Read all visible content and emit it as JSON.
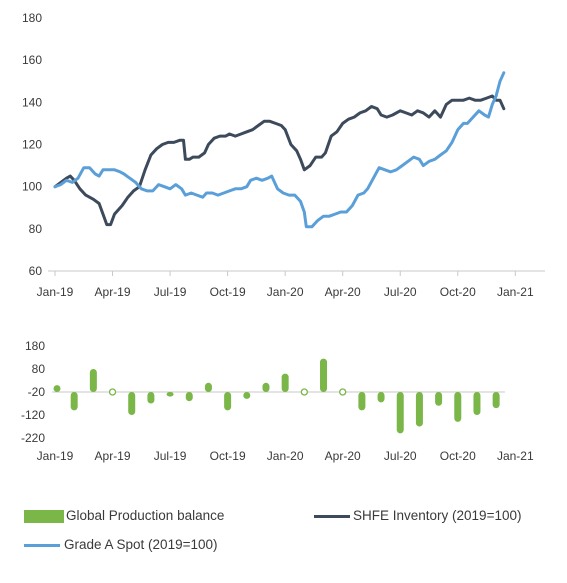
{
  "colors": {
    "production_balance": "#7ab648",
    "shfe_inventory": "#3d4a5c",
    "grade_a_spot": "#5b9fd9",
    "axis": "#c8c8c8",
    "text": "#3a3a3a"
  },
  "legend": {
    "production_balance": "Global Production balance",
    "shfe_inventory": "SHFE Inventory (2019=100)",
    "grade_a_spot": "Grade A Spot (2019=100)"
  },
  "chart_data": [
    {
      "type": "line",
      "title": "",
      "xlabel": "",
      "ylabel": "",
      "x_tick_labels": [
        "Jan-19",
        "Apr-19",
        "Jul-19",
        "Oct-19",
        "Jan-20",
        "Apr-20",
        "Jul-20",
        "Oct-20",
        "Jan-21"
      ],
      "y_tick_labels": [
        "60",
        "80",
        "100",
        "120",
        "140",
        "160",
        "180"
      ],
      "ylim": [
        60,
        180
      ],
      "xlim_months": [
        0,
        26.5
      ],
      "series": [
        {
          "key": "shfe_inventory",
          "name": "SHFE Inventory (2019=100)",
          "points": [
            [
              0,
              100
            ],
            [
              0.3,
              102
            ],
            [
              0.6,
              104
            ],
            [
              0.8,
              105
            ],
            [
              1.0,
              103
            ],
            [
              1.3,
              99
            ],
            [
              1.6,
              96
            ],
            [
              2.0,
              94
            ],
            [
              2.3,
              92
            ],
            [
              2.5,
              87
            ],
            [
              2.7,
              82
            ],
            [
              2.9,
              82
            ],
            [
              3.1,
              87
            ],
            [
              3.5,
              91
            ],
            [
              3.8,
              95
            ],
            [
              4.1,
              98
            ],
            [
              4.4,
              100
            ],
            [
              4.7,
              108
            ],
            [
              5.0,
              115
            ],
            [
              5.3,
              118
            ],
            [
              5.6,
              120
            ],
            [
              5.9,
              121
            ],
            [
              6.2,
              121
            ],
            [
              6.5,
              122
            ],
            [
              6.7,
              122
            ],
            [
              6.8,
              113
            ],
            [
              7.0,
              113
            ],
            [
              7.2,
              114
            ],
            [
              7.5,
              114
            ],
            [
              7.8,
              116
            ],
            [
              8.0,
              120
            ],
            [
              8.3,
              123
            ],
            [
              8.6,
              124
            ],
            [
              8.9,
              124
            ],
            [
              9.1,
              125
            ],
            [
              9.4,
              124
            ],
            [
              9.7,
              125
            ],
            [
              10.0,
              126
            ],
            [
              10.3,
              127
            ],
            [
              10.6,
              129
            ],
            [
              10.9,
              131
            ],
            [
              11.2,
              131
            ],
            [
              11.5,
              130
            ],
            [
              11.8,
              129
            ],
            [
              12.0,
              127
            ],
            [
              12.3,
              120
            ],
            [
              12.6,
              117
            ],
            [
              12.8,
              113
            ],
            [
              13.0,
              108
            ],
            [
              13.3,
              110
            ],
            [
              13.6,
              114
            ],
            [
              13.9,
              114
            ],
            [
              14.1,
              116
            ],
            [
              14.4,
              124
            ],
            [
              14.7,
              126
            ],
            [
              15.0,
              130
            ],
            [
              15.3,
              132
            ],
            [
              15.6,
              133
            ],
            [
              15.9,
              135
            ],
            [
              16.2,
              136
            ],
            [
              16.5,
              138
            ],
            [
              16.8,
              137
            ],
            [
              17.0,
              134
            ],
            [
              17.3,
              133
            ],
            [
              17.6,
              134
            ],
            [
              18.0,
              136
            ],
            [
              18.3,
              135
            ],
            [
              18.6,
              134
            ],
            [
              18.9,
              136
            ],
            [
              19.2,
              135
            ],
            [
              19.5,
              133
            ],
            [
              19.8,
              136
            ],
            [
              20.1,
              133
            ],
            [
              20.4,
              139
            ],
            [
              20.7,
              141
            ],
            [
              21.0,
              141
            ],
            [
              21.3,
              141
            ],
            [
              21.6,
              142
            ],
            [
              21.9,
              141
            ],
            [
              22.2,
              141
            ],
            [
              22.5,
              142
            ],
            [
              22.8,
              143
            ],
            [
              23.0,
              141
            ],
            [
              23.2,
              141
            ],
            [
              23.4,
              137
            ]
          ]
        },
        {
          "key": "grade_a_spot",
          "name": "Grade A Spot (2019=100)",
          "points": [
            [
              0,
              100
            ],
            [
              0.3,
              101
            ],
            [
              0.6,
              103
            ],
            [
              0.9,
              102
            ],
            [
              1.2,
              104
            ],
            [
              1.5,
              109
            ],
            [
              1.8,
              109
            ],
            [
              2.1,
              106
            ],
            [
              2.3,
              105
            ],
            [
              2.5,
              108
            ],
            [
              2.8,
              108
            ],
            [
              3.1,
              108
            ],
            [
              3.4,
              107
            ],
            [
              3.6,
              106
            ],
            [
              3.9,
              104
            ],
            [
              4.2,
              102
            ],
            [
              4.5,
              99
            ],
            [
              4.8,
              98
            ],
            [
              5.1,
              98
            ],
            [
              5.4,
              101
            ],
            [
              5.7,
              100
            ],
            [
              6.0,
              99
            ],
            [
              6.3,
              101
            ],
            [
              6.6,
              99
            ],
            [
              6.8,
              96
            ],
            [
              7.1,
              97
            ],
            [
              7.4,
              96
            ],
            [
              7.7,
              95
            ],
            [
              7.9,
              97
            ],
            [
              8.2,
              97
            ],
            [
              8.5,
              96
            ],
            [
              8.8,
              97
            ],
            [
              9.1,
              98
            ],
            [
              9.4,
              99
            ],
            [
              9.7,
              99
            ],
            [
              10.0,
              100
            ],
            [
              10.2,
              103
            ],
            [
              10.5,
              104
            ],
            [
              10.8,
              103
            ],
            [
              11.1,
              104
            ],
            [
              11.3,
              105
            ],
            [
              11.6,
              99
            ],
            [
              11.9,
              97
            ],
            [
              12.2,
              96
            ],
            [
              12.5,
              96
            ],
            [
              12.8,
              93
            ],
            [
              13.0,
              88
            ],
            [
              13.1,
              81
            ],
            [
              13.4,
              81
            ],
            [
              13.7,
              84
            ],
            [
              14.0,
              86
            ],
            [
              14.3,
              86
            ],
            [
              14.6,
              87
            ],
            [
              14.9,
              88
            ],
            [
              15.2,
              88
            ],
            [
              15.5,
              91
            ],
            [
              15.8,
              96
            ],
            [
              16.1,
              97
            ],
            [
              16.3,
              99
            ],
            [
              16.6,
              104
            ],
            [
              16.9,
              109
            ],
            [
              17.2,
              108
            ],
            [
              17.5,
              107
            ],
            [
              17.8,
              108
            ],
            [
              18.1,
              110
            ],
            [
              18.4,
              112
            ],
            [
              18.7,
              114
            ],
            [
              19.0,
              113
            ],
            [
              19.2,
              110
            ],
            [
              19.5,
              112
            ],
            [
              19.8,
              113
            ],
            [
              20.1,
              115
            ],
            [
              20.4,
              117
            ],
            [
              20.7,
              121
            ],
            [
              21.0,
              127
            ],
            [
              21.3,
              130
            ],
            [
              21.5,
              130
            ],
            [
              21.8,
              133
            ],
            [
              22.1,
              136
            ],
            [
              22.4,
              134
            ],
            [
              22.6,
              133
            ],
            [
              22.8,
              139
            ],
            [
              23.0,
              143
            ],
            [
              23.2,
              150
            ],
            [
              23.4,
              154
            ]
          ]
        }
      ]
    },
    {
      "type": "bar",
      "title": "",
      "xlabel": "",
      "ylabel": "",
      "x_tick_labels": [
        "Jan-19",
        "Apr-19",
        "Jul-19",
        "Oct-19",
        "Jan-20",
        "Apr-20",
        "Jul-20",
        "Oct-20",
        "Jan-21"
      ],
      "y_tick_labels": [
        "180",
        "80",
        "-20",
        "-120",
        "-220"
      ],
      "ylim": [
        -220,
        180
      ],
      "series": [
        {
          "key": "production_balance",
          "name": "Global Production balance",
          "bars": [
            {
              "month": 0,
              "low": -20,
              "high": 10
            },
            {
              "month": 1,
              "low": -100,
              "high": -20
            },
            {
              "month": 2,
              "low": -20,
              "high": 80
            },
            {
              "month": 3,
              "low": -20,
              "high": -20,
              "zero": true
            },
            {
              "month": 4,
              "low": -120,
              "high": -20
            },
            {
              "month": 5,
              "low": -70,
              "high": -20
            },
            {
              "month": 6,
              "low": -40,
              "high": -20
            },
            {
              "month": 7,
              "low": -60,
              "high": -20
            },
            {
              "month": 8,
              "low": -20,
              "high": 20
            },
            {
              "month": 9,
              "low": -100,
              "high": -20
            },
            {
              "month": 10,
              "low": -50,
              "high": -20
            },
            {
              "month": 11,
              "low": -20,
              "high": 20
            },
            {
              "month": 12,
              "low": -20,
              "high": 60
            },
            {
              "month": 13,
              "low": -20,
              "high": -20,
              "zero": true
            },
            {
              "month": 14,
              "low": -20,
              "high": 125
            },
            {
              "month": 15,
              "low": -20,
              "high": -20,
              "zero": true
            },
            {
              "month": 16,
              "low": -100,
              "high": -20
            },
            {
              "month": 17,
              "low": -65,
              "high": -20
            },
            {
              "month": 18,
              "low": -200,
              "high": -20
            },
            {
              "month": 19,
              "low": -170,
              "high": -20
            },
            {
              "month": 20,
              "low": -80,
              "high": -20
            },
            {
              "month": 21,
              "low": -150,
              "high": -20
            },
            {
              "month": 22,
              "low": -120,
              "high": -20
            },
            {
              "month": 23,
              "low": -90,
              "high": -20
            }
          ]
        }
      ]
    }
  ]
}
